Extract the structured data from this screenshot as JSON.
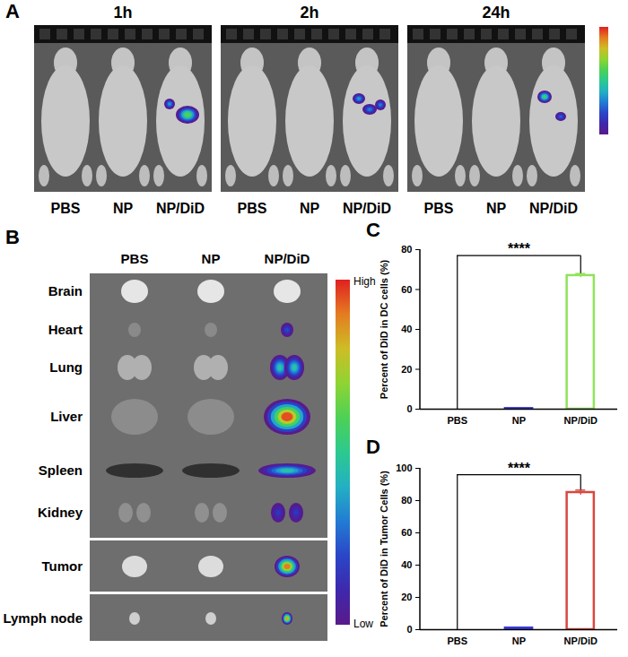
{
  "panel_labels": [
    "A",
    "B",
    "C",
    "D"
  ],
  "panel_a": {
    "timepoints": [
      "1h",
      "2h",
      "24h"
    ],
    "groups": [
      "PBS",
      "NP",
      "NP/DiD"
    ]
  },
  "panel_b": {
    "groups": [
      "PBS",
      "NP",
      "NP/DiD"
    ],
    "organs": [
      {
        "name": "Brain",
        "intensity": 0
      },
      {
        "name": "Heart",
        "intensity": 0.2
      },
      {
        "name": "Lung",
        "intensity": 0.45
      },
      {
        "name": "Liver",
        "intensity": 0.95
      },
      {
        "name": "Spleen",
        "intensity": 0.45
      },
      {
        "name": "Kidney",
        "intensity": 0.15
      },
      {
        "name": "Tumor",
        "intensity": 0.9
      },
      {
        "name": "Lymph node",
        "intensity": 0.85
      }
    ],
    "colorbar": {
      "range": [
        0,
        1
      ],
      "high_label": "High",
      "low_label": "Low"
    }
  },
  "chart_data": [
    {
      "type": "bar",
      "categories": [
        "PBS",
        "NP",
        "NP/DiD"
      ],
      "values": [
        0,
        0.3,
        67
      ],
      "errors": [
        0,
        0.1,
        1
      ],
      "colors": [
        "#000000",
        "#3a3ad6",
        "#8fe35a"
      ],
      "y_label": "Percent of DiD in DC cells (%)",
      "ylim": [
        0,
        80
      ],
      "yticks": [
        0,
        20,
        40,
        60,
        80
      ],
      "annotations": [
        {
          "text": "****",
          "from": "PBS",
          "to": "NP/DiD",
          "y": 77
        }
      ]
    },
    {
      "type": "bar",
      "categories": [
        "PBS",
        "NP",
        "NP/DiD"
      ],
      "values": [
        0,
        1,
        85
      ],
      "errors": [
        0,
        0.3,
        1.5
      ],
      "colors": [
        "#000000",
        "#3a3ad6",
        "#d9473f"
      ],
      "y_label": "Percent of DiD in Tumor Cells (%)",
      "ylim": [
        0,
        100
      ],
      "yticks": [
        0,
        20,
        40,
        60,
        80,
        100
      ],
      "annotations": [
        {
          "text": "****",
          "from": "PBS",
          "to": "NP/DiD",
          "y": 96
        }
      ]
    }
  ]
}
